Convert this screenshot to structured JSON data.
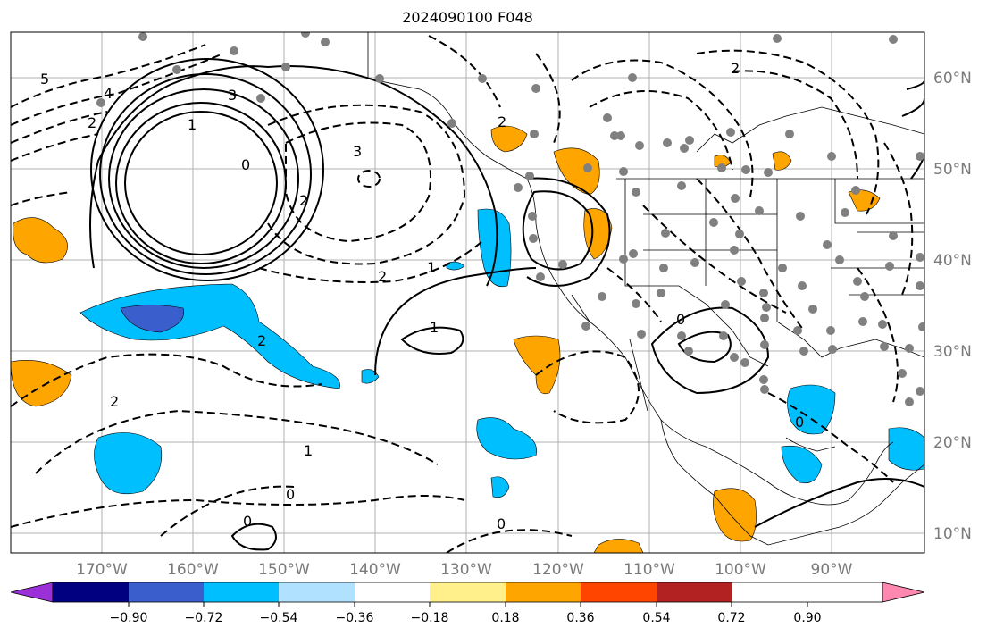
{
  "title": "2024090100 F048",
  "lat_labels": [
    "60°N",
    "50°N",
    "40°N",
    "30°N",
    "20°N",
    "10°N"
  ],
  "lon_labels": [
    "170°W",
    "160°W",
    "150°W",
    "140°W",
    "130°W",
    "120°W",
    "110°W",
    "100°W",
    "90°W"
  ],
  "colorbar": {
    "colors": [
      "#9b30d9",
      "#000080",
      "#3a5fcd",
      "#00bfff",
      "#b0e2ff",
      "#ffffff",
      "#fff08c",
      "#ffa500",
      "#ff4500",
      "#b22222",
      "#ff88b0"
    ],
    "tick_labels": [
      "−0.90",
      "−0.72",
      "−0.54",
      "−0.36",
      "−0.18",
      "0.18",
      "0.36",
      "0.54",
      "0.72",
      "0.90"
    ]
  },
  "contour_labels": [
    "5",
    "4",
    "3",
    "2",
    "1",
    "0",
    "3",
    "2",
    "2",
    "1",
    "2",
    "1",
    "2",
    "0",
    "1",
    "0",
    "0",
    "2",
    "2",
    "0",
    "0"
  ]
}
